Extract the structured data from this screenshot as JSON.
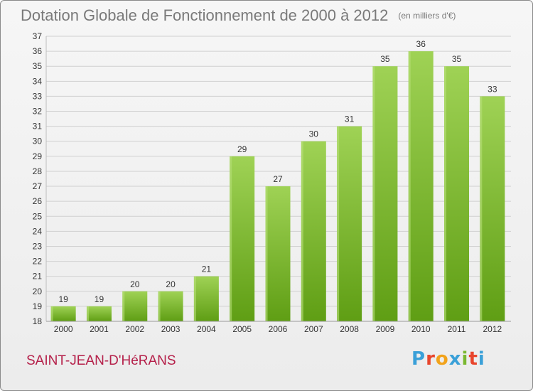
{
  "header": {
    "title": "Dotation Globale de Fonctionnement de 2000 à 2012",
    "unit": "(en milliers d'€)"
  },
  "footer": {
    "city": "SAINT-JEAN-D'HéRANS",
    "logo": "Proxiti",
    "logo_colors": [
      "#3aa0d8",
      "#e8452c",
      "#f2a31b",
      "#3aa0d8",
      "#7ab830",
      "#e8452c",
      "#3aa0d8"
    ]
  },
  "colors": {
    "bar_top": "#9fd255",
    "bar_bottom": "#5f9e14",
    "grid": "#d0d0d0",
    "axis_text": "#333333"
  },
  "chart_data": {
    "type": "bar",
    "categories": [
      "2000",
      "2001",
      "2002",
      "2003",
      "2004",
      "2005",
      "2006",
      "2007",
      "2008",
      "2009",
      "2010",
      "2011",
      "2012"
    ],
    "values": [
      19,
      19,
      20,
      20,
      21,
      29,
      27,
      30,
      31,
      35,
      36,
      35,
      33
    ],
    "ylim": [
      18,
      37
    ],
    "yticks": [
      18,
      19,
      20,
      21,
      22,
      23,
      24,
      25,
      26,
      27,
      28,
      29,
      30,
      31,
      32,
      33,
      34,
      35,
      36,
      37
    ],
    "grid": true,
    "data_labels": true
  }
}
